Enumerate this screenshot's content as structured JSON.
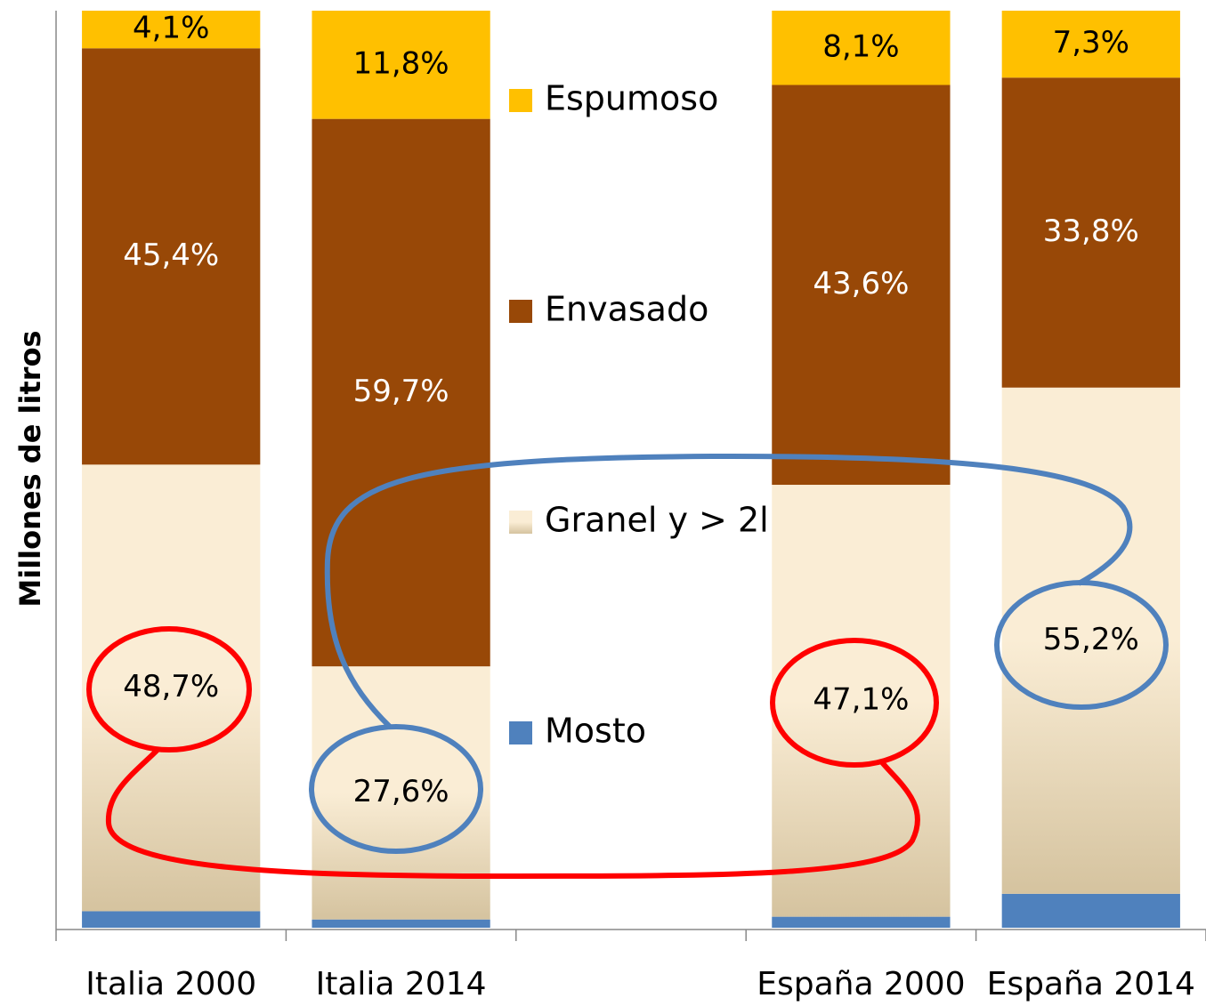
{
  "chart_data": {
    "type": "stacked_bar_percent",
    "y_label": "Millones de litros",
    "categories": [
      "Italia 2000",
      "Italia 2014",
      null,
      "España 2000",
      "España 2014"
    ],
    "ylim": [
      0,
      100
    ],
    "legend": "center",
    "series": [
      {
        "name": "Mosto",
        "color": "#4f81bd",
        "values": [
          1.8,
          0.9,
          null,
          1.2,
          3.7
        ]
      },
      {
        "name": "Granel y > 2l",
        "color": "#faedd5",
        "values": [
          48.7,
          27.6,
          null,
          47.1,
          55.2
        ],
        "value_labels": [
          "48,7%",
          "27,6%",
          null,
          "47,1%",
          "55,2%"
        ]
      },
      {
        "name": "Envasado",
        "color": "#984807",
        "values": [
          45.4,
          59.7,
          null,
          43.6,
          33.8
        ],
        "value_labels": [
          "45,4%",
          "59,7%",
          null,
          "43,6%",
          "33,8%"
        ]
      },
      {
        "name": "Espumoso",
        "color": "#ffc000",
        "values": [
          4.1,
          11.8,
          null,
          8.1,
          7.3
        ],
        "value_labels": [
          "4,1%",
          "11,8%",
          null,
          "8,1%",
          "7,3%"
        ]
      }
    ]
  }
}
